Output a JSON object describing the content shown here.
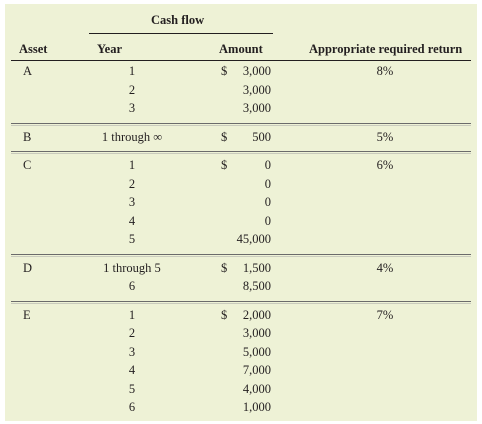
{
  "header": {
    "group_label": "Cash flow",
    "asset": "Asset",
    "year": "Year",
    "amount": "Amount",
    "return": "Appropriate required return"
  },
  "assets": [
    {
      "asset": "A",
      "return": "8%",
      "rows": [
        {
          "year": "1",
          "dollar": "$",
          "amount": "3,000"
        },
        {
          "year": "2",
          "dollar": "",
          "amount": "3,000"
        },
        {
          "year": "3",
          "dollar": "",
          "amount": "3,000"
        }
      ]
    },
    {
      "asset": "B",
      "return": "5%",
      "rows": [
        {
          "year": "1 through ∞",
          "dollar": "$",
          "amount": "500"
        }
      ]
    },
    {
      "asset": "C",
      "return": "6%",
      "rows": [
        {
          "year": "1",
          "dollar": "$",
          "amount": "0"
        },
        {
          "year": "2",
          "dollar": "",
          "amount": "0"
        },
        {
          "year": "3",
          "dollar": "",
          "amount": "0"
        },
        {
          "year": "4",
          "dollar": "",
          "amount": "0"
        },
        {
          "year": "5",
          "dollar": "",
          "amount": "45,000"
        }
      ]
    },
    {
      "asset": "D",
      "return": "4%",
      "rows": [
        {
          "year": "1 through 5",
          "dollar": "$",
          "amount": "1,500"
        },
        {
          "year": "6",
          "dollar": "",
          "amount": "8,500"
        }
      ]
    },
    {
      "asset": "E",
      "return": "7%",
      "rows": [
        {
          "year": "1",
          "dollar": "$",
          "amount": "2,000"
        },
        {
          "year": "2",
          "dollar": "",
          "amount": "3,000"
        },
        {
          "year": "3",
          "dollar": "",
          "amount": "5,000"
        },
        {
          "year": "4",
          "dollar": "",
          "amount": "7,000"
        },
        {
          "year": "5",
          "dollar": "",
          "amount": "4,000"
        },
        {
          "year": "6",
          "dollar": "",
          "amount": "1,000"
        }
      ]
    }
  ]
}
